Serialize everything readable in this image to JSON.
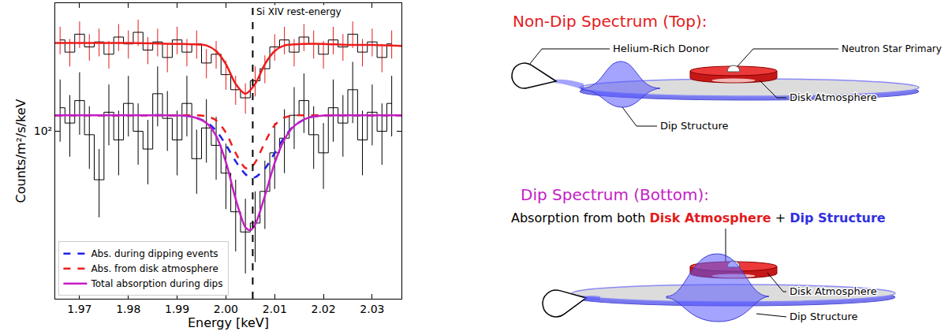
{
  "chart_data": {
    "type": "line",
    "xlabel": "Energy [keV]",
    "ylabel": "Counts/m²/s/keV",
    "xlim": [
      1.965,
      2.036
    ],
    "xticks": [
      1.97,
      1.98,
      1.99,
      {
        "value": 2.0,
        "label": "2.00"
      },
      2.01,
      2.02,
      2.03
    ],
    "ylim": [
      37,
      214
    ],
    "yticks": [
      {
        "value": 100,
        "label": "10²"
      }
    ],
    "log": "y",
    "grid": false,
    "legend": "lower left",
    "annotations": [
      {
        "text": "Si XIV rest-energy",
        "x": 2.0055,
        "line_style": "dash"
      }
    ],
    "series": [
      {
        "type": "step",
        "color": "#000000",
        "x": [
          1.966,
          1.968,
          1.97,
          1.972,
          1.974,
          1.976,
          1.978,
          1.98,
          1.982,
          1.984,
          1.986,
          1.988,
          1.99,
          1.992,
          1.994,
          1.996,
          1.998,
          2.0,
          2.002,
          2.004,
          2.006,
          2.008,
          2.01,
          2.012,
          2.014,
          2.016,
          2.018,
          2.02,
          2.022,
          2.024,
          2.026,
          2.028,
          2.03,
          2.032,
          2.034
        ],
        "values": [
          172,
          160,
          178,
          165,
          170,
          158,
          175,
          168,
          180,
          162,
          170,
          155,
          172,
          160,
          168,
          150,
          158,
          140,
          128,
          122,
          135,
          145,
          165,
          172,
          160,
          175,
          168,
          158,
          172,
          165,
          178,
          160,
          170,
          155,
          168
        ],
        "errors": [
          14,
          13,
          14,
          13,
          14,
          13,
          14,
          14,
          14,
          13,
          14,
          13,
          14,
          13,
          14,
          13,
          13,
          12,
          11,
          11,
          12,
          12,
          13,
          14,
          13,
          14,
          14,
          13,
          14,
          13,
          14,
          13,
          14,
          13,
          14
        ]
      },
      {
        "type": "step",
        "color": "#000000",
        "x": [
          1.966,
          1.968,
          1.97,
          1.972,
          1.974,
          1.976,
          1.978,
          1.98,
          1.982,
          1.984,
          1.986,
          1.988,
          1.99,
          1.992,
          1.994,
          1.996,
          1.998,
          2.0,
          2.002,
          2.004,
          2.006,
          2.008,
          2.01,
          2.012,
          2.014,
          2.016,
          2.018,
          2.02,
          2.022,
          2.024,
          2.026,
          2.028,
          2.03,
          2.032,
          2.034
        ],
        "values": [
          115,
          105,
          120,
          98,
          75,
          112,
          95,
          118,
          100,
          90,
          125,
          108,
          95,
          118,
          85,
          102,
          92,
          78,
          62,
          55,
          58,
          70,
          88,
          96,
          110,
          120,
          98,
          88,
          115,
          105,
          128,
          95,
          112,
          100,
          118
        ],
        "errors": [
          21,
          19,
          22,
          18,
          15,
          20,
          18,
          21,
          18,
          17,
          22,
          19,
          18,
          21,
          16,
          19,
          17,
          15,
          13,
          12,
          12,
          14,
          17,
          18,
          20,
          21,
          18,
          17,
          21,
          19,
          23,
          18,
          20,
          18,
          21
        ]
      },
      {
        "type": "line",
        "color": "#ee1c1c",
        "line_style": "solid",
        "x": [
          1.965,
          1.97,
          1.975,
          1.98,
          1.985,
          1.99,
          1.994,
          1.996,
          1.998,
          2.0,
          2.002,
          2.004,
          2.006,
          2.008,
          2.01,
          2.012,
          2.014,
          2.016,
          2.02,
          2.025,
          2.03,
          2.036
        ],
        "values": [
          169,
          169,
          169,
          169,
          168.5,
          168,
          167.5,
          166.5,
          161,
          149,
          132.5,
          125,
          132.5,
          149,
          161,
          166.5,
          167.5,
          168,
          168,
          167,
          167,
          166
        ]
      },
      {
        "type": "line",
        "name": "Abs. during dipping events",
        "color": "#2020e6",
        "line_style": "dash",
        "x": [
          1.965,
          1.98,
          1.99,
          1.993,
          1.996,
          1.998,
          2.0,
          2.002,
          2.004,
          2.005,
          2.006,
          2.008,
          2.01,
          2.012,
          2.014,
          2.017,
          2.02,
          2.025,
          2.036
        ],
        "values": [
          110,
          110,
          109.9,
          109.1,
          105.7,
          100.3,
          92.3,
          83.7,
          77.5,
          76.1,
          76.1,
          80.1,
          87.9,
          96.6,
          103.4,
          108.5,
          109.8,
          110,
          110
        ]
      },
      {
        "type": "line",
        "name": "Abs. from disk atmosphere",
        "color": "#ee1c1c",
        "line_style": "dash",
        "x": [
          1.965,
          1.98,
          1.99,
          1.993,
          1.996,
          1.998,
          2.0,
          2.002,
          2.004,
          2.005,
          2.006,
          2.008,
          2.01,
          2.012,
          2.014,
          2.017,
          2.02,
          2.025,
          2.036
        ],
        "values": [
          110,
          110,
          110,
          110,
          109.4,
          106.7,
          99.2,
          87.9,
          80.4,
          80.4,
          83.1,
          93.6,
          103.7,
          108.5,
          109.8,
          110,
          110,
          110,
          110
        ]
      },
      {
        "type": "line",
        "name": "Total absorption during dips",
        "color": "#c41ec4",
        "line_style": "solid",
        "x": [
          1.965,
          1.98,
          1.99,
          1.993,
          1.996,
          1.998,
          2.0,
          2.002,
          2.004,
          2.005,
          2.006,
          2.008,
          2.01,
          2.012,
          2.014,
          2.017,
          2.02,
          2.025,
          2.036
        ],
        "values": [
          110,
          110,
          109.9,
          109.1,
          105.1,
          97.3,
          83.3,
          66.9,
          56.6,
          55.6,
          57.5,
          68.2,
          82.8,
          95.3,
          103.2,
          108.5,
          109.8,
          110,
          110
        ]
      }
    ]
  },
  "diagram": {
    "top": {
      "title": "Non-Dip Spectrum (Top):",
      "labels": {
        "donor": "Helium-Rich Donor",
        "primary": "Neutron Star Primary",
        "atmosphere": "Disk Atmosphere",
        "dip": "Dip Structure"
      }
    },
    "bottom": {
      "title": "Dip Spectrum (Bottom):",
      "caption": [
        "Absorption from both ",
        "Disk Atmosphere",
        " + ",
        "Dip Structure"
      ],
      "labels": {
        "atmosphere": "Disk Atmosphere",
        "dip": "Dip Structure"
      }
    }
  }
}
